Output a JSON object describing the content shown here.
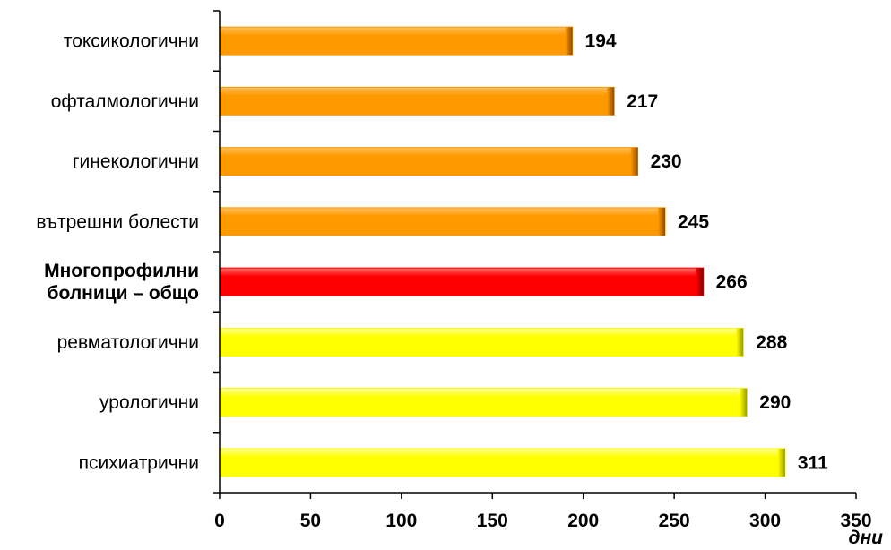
{
  "chart_data": {
    "type": "bar",
    "orientation": "horizontal",
    "categories": [
      {
        "label": [
          "токсикологични"
        ],
        "value": 194,
        "value_label": "194",
        "color": "orange",
        "bold": false
      },
      {
        "label": [
          "офталмологични"
        ],
        "value": 217,
        "value_label": "217",
        "color": "orange",
        "bold": false
      },
      {
        "label": [
          "гинекологични"
        ],
        "value": 230,
        "value_label": "230",
        "color": "orange",
        "bold": false
      },
      {
        "label": [
          "вътрешни  болести"
        ],
        "value": 245,
        "value_label": "245",
        "color": "orange",
        "bold": false
      },
      {
        "label": [
          "Многопрофилни",
          "болници – общо"
        ],
        "value": 266,
        "value_label": "266",
        "color": "red",
        "bold": true
      },
      {
        "label": [
          "ревматологични"
        ],
        "value": 288,
        "value_label": "288",
        "color": "yellow",
        "bold": false
      },
      {
        "label": [
          "урологични"
        ],
        "value": 290,
        "value_label": "290",
        "color": "yellow",
        "bold": false
      },
      {
        "label": [
          "психиатрични"
        ],
        "value": 311,
        "value_label": "311",
        "color": "yellow",
        "bold": false
      }
    ],
    "xlim": [
      0,
      350
    ],
    "xticks": [
      0,
      50,
      100,
      150,
      200,
      250,
      300,
      350
    ],
    "xunit": "дни",
    "grid": false,
    "legend": "none",
    "colors": {
      "orange": {
        "fill": "#FF9900",
        "edge": "#8A4B00",
        "highlight": "#FFC060"
      },
      "red": {
        "fill": "#FF0000",
        "edge": "#7A0000",
        "highlight": "#FF6A6A"
      },
      "yellow": {
        "fill": "#FFFF00",
        "edge": "#9A9A00",
        "highlight": "#FFFF99"
      }
    }
  }
}
